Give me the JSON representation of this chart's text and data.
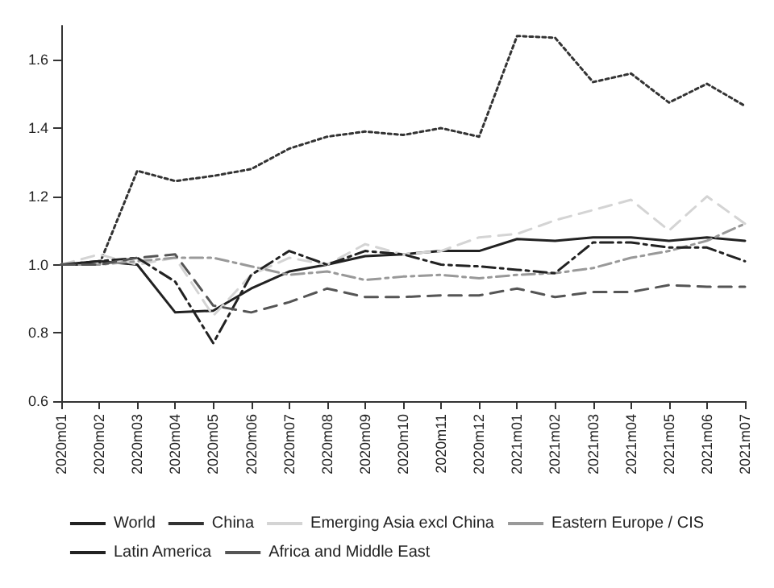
{
  "chart_data": {
    "type": "line",
    "categories": [
      "2020m01",
      "2020m02",
      "2020m03",
      "2020m04",
      "2020m05",
      "2020m06",
      "2020m07",
      "2020m08",
      "2020m09",
      "2020m10",
      "2020m11",
      "2020m12",
      "2021m01",
      "2021m02",
      "2021m03",
      "2021m04",
      "2021m05",
      "2021m06",
      "2021m07"
    ],
    "series": [
      {
        "name": "World",
        "color": "#222222",
        "line_style": "solid",
        "values": [
          1.0,
          1.01,
          1.0,
          0.86,
          0.865,
          0.93,
          0.98,
          1.0,
          1.025,
          1.03,
          1.04,
          1.04,
          1.075,
          1.07,
          1.08,
          1.08,
          1.07,
          1.08,
          1.07
        ]
      },
      {
        "name": "China",
        "color": "#333333",
        "line_style": "dotted",
        "values": [
          1.0,
          1.0,
          1.275,
          1.245,
          1.26,
          1.28,
          1.34,
          1.375,
          1.39,
          1.38,
          1.4,
          1.375,
          1.67,
          1.665,
          1.535,
          1.56,
          1.475,
          1.53,
          1.465
        ]
      },
      {
        "name": "Emerging Asia excl China",
        "color": "#d4d4d4",
        "line_style": "dashed",
        "values": [
          1.0,
          1.03,
          1.0,
          1.02,
          0.85,
          0.97,
          1.02,
          1.0,
          1.06,
          1.03,
          1.04,
          1.08,
          1.09,
          1.13,
          1.16,
          1.19,
          1.1,
          1.2,
          1.12
        ]
      },
      {
        "name": "Eastern Europe / CIS",
        "color": "#999999",
        "line_style": "dashdot",
        "values": [
          1.0,
          1.0,
          1.01,
          1.02,
          1.02,
          0.995,
          0.97,
          0.98,
          0.955,
          0.965,
          0.97,
          0.96,
          0.97,
          0.975,
          0.99,
          1.02,
          1.04,
          1.07,
          1.12
        ]
      },
      {
        "name": "Latin America",
        "color": "#222222",
        "line_style": "dashdot",
        "values": [
          1.0,
          1.01,
          1.02,
          0.95,
          0.77,
          0.97,
          1.04,
          1.0,
          1.04,
          1.03,
          1.0,
          0.995,
          0.985,
          0.975,
          1.065,
          1.065,
          1.05,
          1.05,
          1.01
        ]
      },
      {
        "name": "Africa and Middle East",
        "color": "#555555",
        "line_style": "dashed",
        "values": [
          1.0,
          1.0,
          1.02,
          1.03,
          0.88,
          0.86,
          0.89,
          0.93,
          0.905,
          0.905,
          0.91,
          0.91,
          0.93,
          0.905,
          0.92,
          0.92,
          0.94,
          0.935,
          0.935
        ]
      }
    ],
    "ylim": [
      0.6,
      1.7
    ],
    "yticks": [
      {
        "value": 0.6,
        "label": "0.6"
      },
      {
        "value": 0.8,
        "label": "0.8"
      },
      {
        "value": 1.0,
        "label": "1.0"
      },
      {
        "value": 1.2,
        "label": "1.2"
      },
      {
        "value": 1.4,
        "label": "1.4"
      },
      {
        "value": 1.6,
        "label": "1.6"
      }
    ],
    "grid": false,
    "legend": "bottom",
    "marker": "none"
  }
}
